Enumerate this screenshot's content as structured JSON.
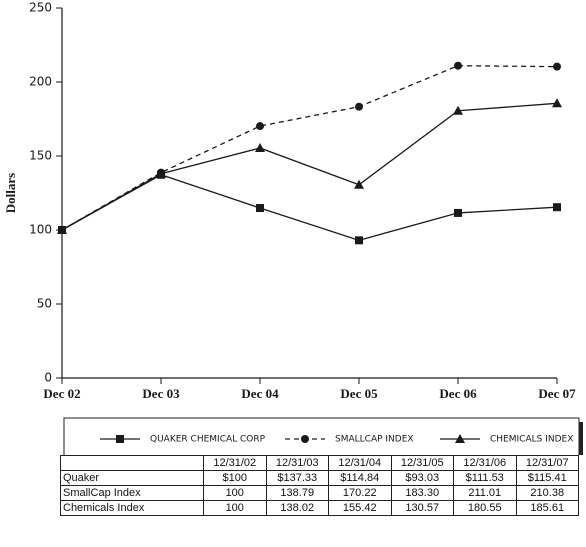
{
  "chart_data": {
    "type": "line",
    "ylabel": "Dollars",
    "categories": [
      "Dec 02",
      "Dec 03",
      "Dec 04",
      "Dec 05",
      "Dec 06",
      "Dec 07"
    ],
    "ylim": [
      0,
      250
    ],
    "yticks": [
      0,
      50,
      100,
      150,
      200,
      250
    ],
    "series": [
      {
        "name": "QUAKER CHEMICAL CORP",
        "color": "#1a1a1a",
        "marker": "square",
        "dash": "solid",
        "values": [
          100,
          137.33,
          114.84,
          93.03,
          111.53,
          115.41
        ]
      },
      {
        "name": "SMALLCAP INDEX",
        "color": "#1a1a1a",
        "marker": "circle",
        "dash": "dashed",
        "values": [
          100,
          138.79,
          170.22,
          183.3,
          211.01,
          210.38
        ]
      },
      {
        "name": "CHEMICALS INDEX",
        "color": "#1a1a1a",
        "marker": "triangle",
        "dash": "solid",
        "values": [
          100,
          138.02,
          155.42,
          130.57,
          180.55,
          185.61
        ]
      }
    ]
  },
  "table": {
    "columns": [
      "12/31/02",
      "12/31/03",
      "12/31/04",
      "12/31/05",
      "12/31/06",
      "12/31/07"
    ],
    "rows": [
      {
        "label": "Quaker",
        "cells": [
          "$100",
          "$137.33",
          "$114.84",
          "$93.03",
          "$111.53",
          "$115.41"
        ]
      },
      {
        "label": "SmallCap Index",
        "cells": [
          "100",
          "138.79",
          "170.22",
          "183.30",
          "211.01",
          "210.38"
        ]
      },
      {
        "label": "Chemicals Index",
        "cells": [
          "100",
          "138.02",
          "155.42",
          "130.57",
          "180.55",
          "185.61"
        ]
      }
    ]
  }
}
